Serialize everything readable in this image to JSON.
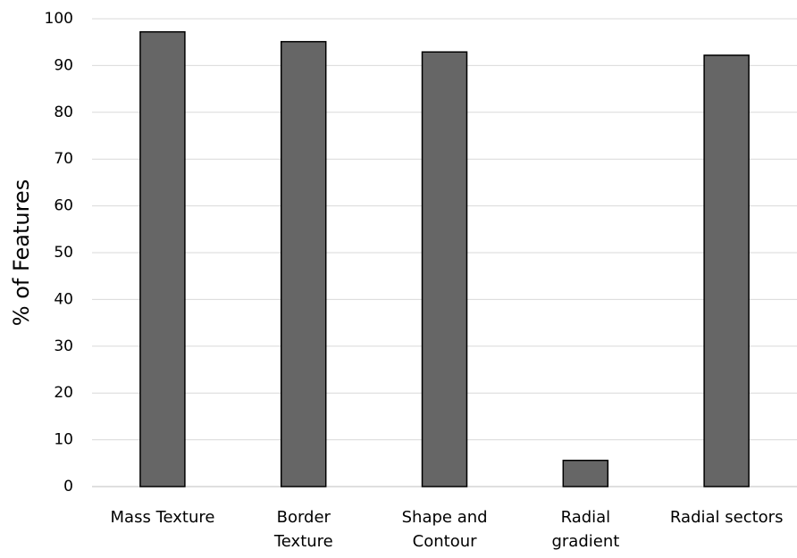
{
  "chart_data": {
    "type": "bar",
    "y_label": "% of Features",
    "categories": [
      "Mass Texture",
      "Border\nTexture",
      "Shape and\nContour",
      "Radial\ngradient",
      "Radial sectors"
    ],
    "values": [
      97.2,
      95.1,
      92.9,
      5.6,
      92.2
    ],
    "color": "#666666",
    "ylim": [
      0,
      100
    ],
    "yticks": [
      0,
      10,
      20,
      30,
      40,
      50,
      60,
      70,
      80,
      90,
      100
    ],
    "grid": true
  }
}
